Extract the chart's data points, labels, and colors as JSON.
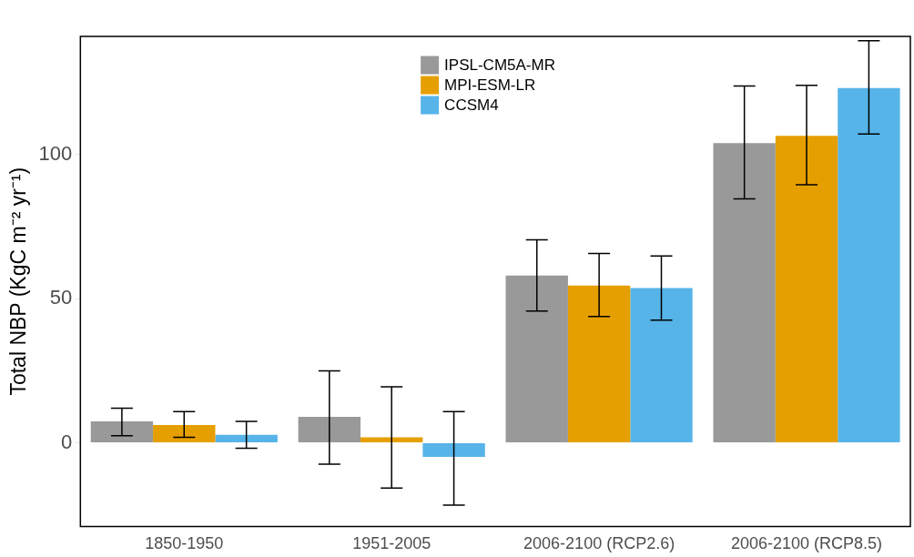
{
  "chart_data": {
    "type": "bar",
    "ylabel": "Total NBP (KgC m⁻² yr⁻¹)",
    "categories": [
      "1850-1950",
      "1951-2005",
      "2006-2100 (RCP2.6)",
      "2006-2100 (RCP8.5)"
    ],
    "series": [
      {
        "name": "IPSL-CM5A-MR",
        "color": "#999999",
        "values": [
          7.4,
          9,
          58,
          104
        ],
        "errors": [
          [
            2.5,
            12
          ],
          [
            -7.4,
            25
          ],
          [
            45.7,
            70.4
          ],
          [
            84.6,
            123.8
          ]
        ]
      },
      {
        "name": "MPI-ESM-LR",
        "color": "#e69f00",
        "values": [
          6.2,
          1.9,
          54.6,
          106.5
        ],
        "errors": [
          [
            1.9,
            10.8
          ],
          [
            -15.7,
            19.4
          ],
          [
            43.8,
            65.7
          ],
          [
            89.5,
            124
          ]
        ]
      },
      {
        "name": "CCSM4",
        "color": "#56b4e9",
        "values": [
          2.8,
          -4.9,
          53.7,
          123.1
        ],
        "errors": [
          [
            -1.9,
            7.4
          ],
          [
            -21.6,
            10.8
          ],
          [
            42.6,
            64.8
          ],
          [
            107.1,
            139.5
          ]
        ]
      }
    ],
    "ylim": [
      -29,
      141
    ],
    "yticks": [
      0,
      50,
      100
    ],
    "grid": false,
    "legend": "top"
  }
}
